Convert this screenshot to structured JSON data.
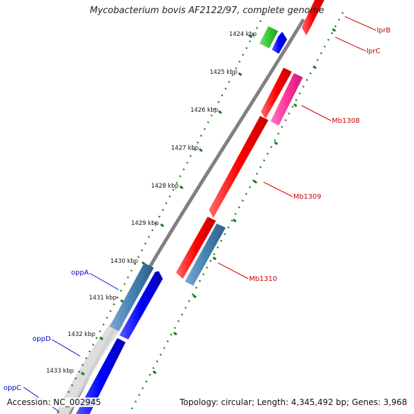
{
  "map": {
    "title": "Mycobacterium bovis AF2122/97, complete genome",
    "accession": "Accession: NC_002945",
    "summary": "Topology: circular; Length: 4,345,492 bp; Genes: 3,968"
  },
  "ticks": [
    "1424 kbp",
    "1425 kbp",
    "1426 kbp",
    "1427 kbp",
    "1428 kbp",
    "1429 kbp",
    "1430 kbp",
    "1431 kbp",
    "1432 kbp",
    "1433 kbp"
  ],
  "labels": {
    "lprB": "lprB",
    "lprC": "lprC",
    "mb1308": "Mb1308",
    "mb1309": "Mb1309",
    "mb1310": "Mb1310",
    "oppA": "oppA",
    "oppD": "oppD",
    "oppC": "oppC"
  },
  "colors": {
    "reverse_gene": "#ff0000",
    "pink_gene": "#ff3399",
    "steel_gene": "#4682b4",
    "forward_gene": "#0000ff",
    "green_gene": "#33cc33",
    "backbone": "#888888",
    "tick": "#1a7a1a",
    "reverse_label": "#cc0000",
    "forward_label": "#0000cc"
  }
}
